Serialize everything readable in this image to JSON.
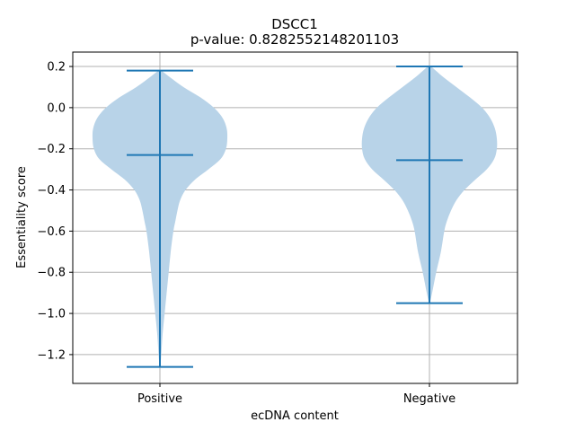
{
  "chart_data": {
    "type": "violin",
    "title": "DSCC1",
    "subtitle": "p-value: 0.8282552148201103",
    "xlabel": "ecDNA content",
    "ylabel": "Essentiality score",
    "categories": [
      "Positive",
      "Negative"
    ],
    "ylim": [
      -1.34,
      0.27
    ],
    "yticks": [
      0.2,
      0.0,
      -0.2,
      -0.4,
      -0.6,
      -0.8,
      -1.0,
      -1.2
    ],
    "ytick_labels": [
      "0.2",
      "0.0",
      "−0.2",
      "−0.4",
      "−0.6",
      "−0.8",
      "−1.0",
      "−1.2"
    ],
    "grid": true,
    "series": [
      {
        "category": "Positive",
        "min": -1.26,
        "mean": -0.23,
        "max": 0.18,
        "density": [
          [
            0.18,
            0.02
          ],
          [
            0.15,
            0.14
          ],
          [
            0.1,
            0.35
          ],
          [
            0.05,
            0.6
          ],
          [
            0.0,
            0.8
          ],
          [
            -0.05,
            0.93
          ],
          [
            -0.1,
            0.99
          ],
          [
            -0.15,
            1.0
          ],
          [
            -0.2,
            0.98
          ],
          [
            -0.25,
            0.9
          ],
          [
            -0.3,
            0.72
          ],
          [
            -0.35,
            0.52
          ],
          [
            -0.4,
            0.38
          ],
          [
            -0.45,
            0.3
          ],
          [
            -0.5,
            0.26
          ],
          [
            -0.55,
            0.23
          ],
          [
            -0.6,
            0.2
          ],
          [
            -0.7,
            0.16
          ],
          [
            -0.8,
            0.13
          ],
          [
            -0.9,
            0.1
          ],
          [
            -1.0,
            0.07
          ],
          [
            -1.1,
            0.04
          ],
          [
            -1.2,
            0.02
          ],
          [
            -1.26,
            0.005
          ]
        ]
      },
      {
        "category": "Negative",
        "min": -0.95,
        "mean": -0.255,
        "max": 0.2,
        "density": [
          [
            0.2,
            0.02
          ],
          [
            0.15,
            0.2
          ],
          [
            0.1,
            0.4
          ],
          [
            0.05,
            0.6
          ],
          [
            0.0,
            0.78
          ],
          [
            -0.05,
            0.9
          ],
          [
            -0.1,
            0.97
          ],
          [
            -0.15,
            1.0
          ],
          [
            -0.2,
            1.0
          ],
          [
            -0.25,
            0.96
          ],
          [
            -0.3,
            0.85
          ],
          [
            -0.35,
            0.68
          ],
          [
            -0.4,
            0.52
          ],
          [
            -0.45,
            0.4
          ],
          [
            -0.5,
            0.32
          ],
          [
            -0.55,
            0.26
          ],
          [
            -0.6,
            0.22
          ],
          [
            -0.7,
            0.17
          ],
          [
            -0.8,
            0.1
          ],
          [
            -0.9,
            0.04
          ],
          [
            -0.95,
            0.005
          ]
        ]
      }
    ],
    "colors": {
      "violin_fill": "#b8d3e8",
      "stat_line": "#1f77b4",
      "grid": "#b0b0b0",
      "axis": "#000000"
    }
  }
}
